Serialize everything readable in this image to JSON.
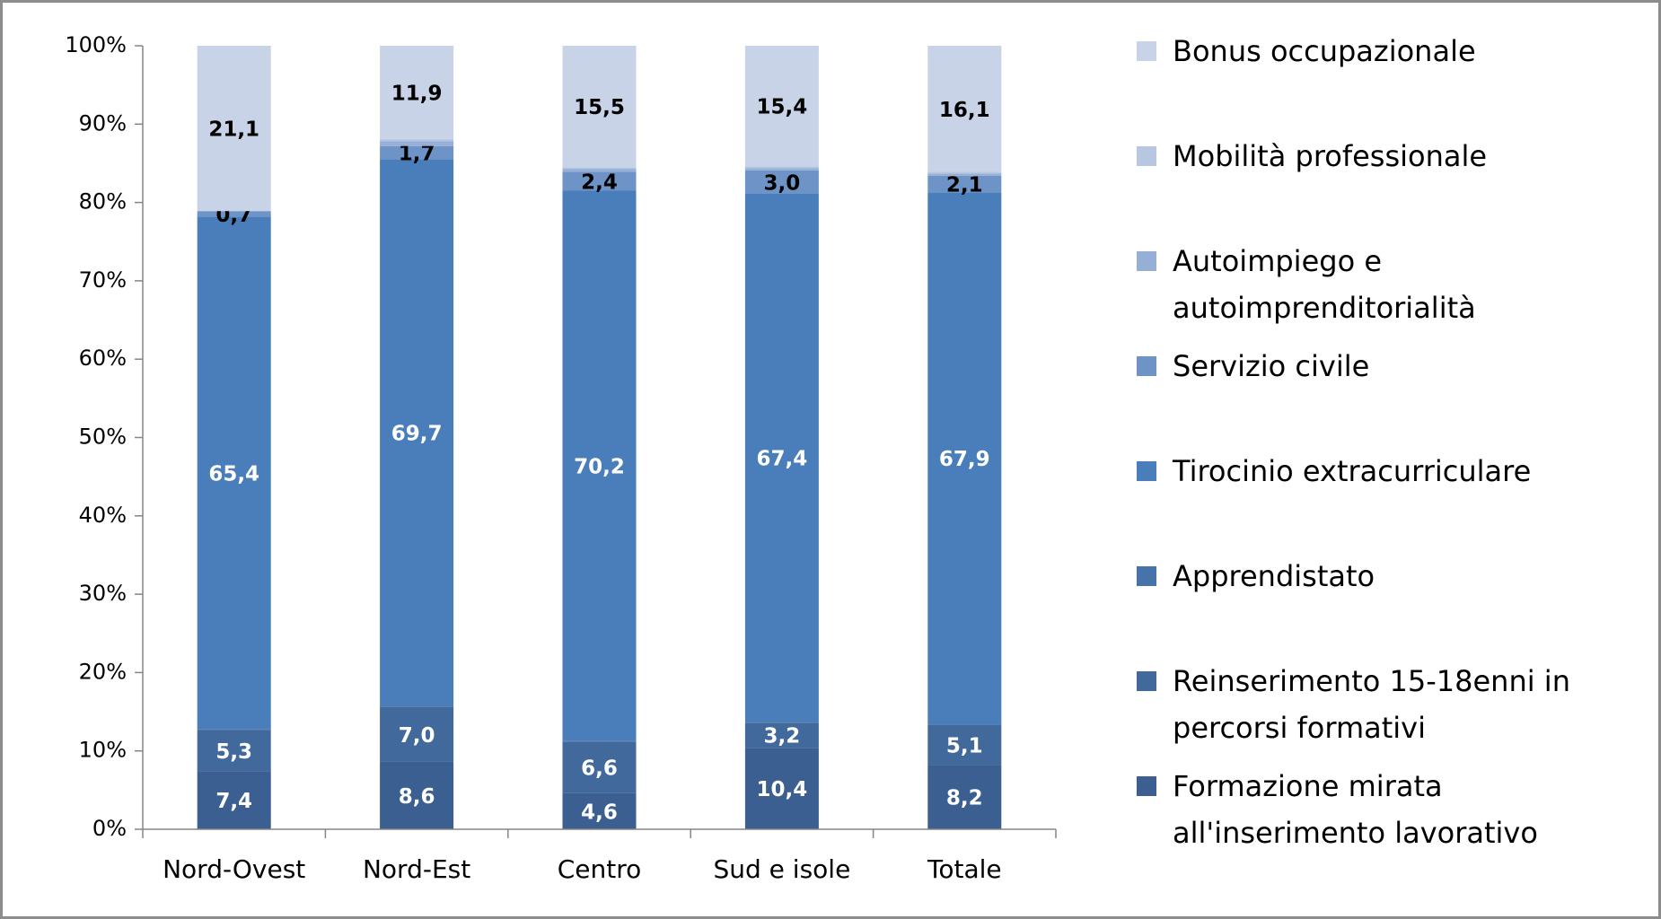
{
  "chart_data": {
    "type": "stacked_bar",
    "categories": [
      "Nord-Ovest",
      "Nord-Est",
      "Centro",
      "Sud e isole",
      "Totale"
    ],
    "series": [
      {
        "name": "Formazione mirata all'inserimento lavorativo",
        "color": "#3b5f90",
        "values": [
          7.4,
          8.6,
          4.6,
          10.4,
          8.2
        ],
        "value_labels": [
          "7,4",
          "8,6",
          "4,6",
          "10,4",
          "8,2"
        ]
      },
      {
        "name": "Reinserimento 15-18enni in percorsi formativi",
        "color": "#41699c",
        "values": [
          5.3,
          7.0,
          6.6,
          3.2,
          5.1
        ],
        "value_labels": [
          "5,3",
          "7,0",
          "6,6",
          "3,2",
          "5,1"
        ]
      },
      {
        "name": "Apprendistato",
        "color": "#4673a9",
        "values": [
          0.1,
          0.2,
          0.1,
          0.1,
          0.1
        ],
        "value_labels": [
          null,
          null,
          null,
          null,
          null
        ]
      },
      {
        "name": "Tirocinio extracurriculare",
        "color": "#4a7ebb",
        "values": [
          65.4,
          69.7,
          70.2,
          67.4,
          67.9
        ],
        "value_labels": [
          "65,4",
          "69,7",
          "70,2",
          "67,4",
          "67,9"
        ]
      },
      {
        "name": "Servizio civile",
        "color": "#6d93c7",
        "values": [
          0.7,
          1.7,
          2.4,
          3.0,
          2.1
        ],
        "value_labels": [
          "0,7",
          "1,7",
          "2,4",
          "3,0",
          "2,1"
        ]
      },
      {
        "name": "Autoimpiego e autoimprenditorialità",
        "color": "#95afd6",
        "values": [
          0.0,
          0.6,
          0.4,
          0.3,
          0.3
        ],
        "value_labels": [
          null,
          null,
          null,
          null,
          null
        ]
      },
      {
        "name": "Mobilità professionale",
        "color": "#b7c7e2",
        "values": [
          0.0,
          0.3,
          0.2,
          0.2,
          0.2
        ],
        "value_labels": [
          null,
          null,
          null,
          null,
          null
        ]
      },
      {
        "name": "Bonus occupazionale",
        "color": "#c9d3e7",
        "values": [
          21.1,
          11.9,
          15.5,
          15.4,
          16.1
        ],
        "value_labels": [
          "21,1",
          "11,9",
          "15,5",
          "15,4",
          "16,1"
        ]
      }
    ],
    "ylim": [
      0,
      100
    ],
    "yticks": [
      {
        "value": 0,
        "label": "0%"
      },
      {
        "value": 10,
        "label": "10%"
      },
      {
        "value": 20,
        "label": "20%"
      },
      {
        "value": 30,
        "label": "30%"
      },
      {
        "value": 40,
        "label": "40%"
      },
      {
        "value": 50,
        "label": "50%"
      },
      {
        "value": 60,
        "label": "60%"
      },
      {
        "value": 70,
        "label": "70%"
      },
      {
        "value": 80,
        "label": "80%"
      },
      {
        "value": 90,
        "label": "90%"
      },
      {
        "value": 100,
        "label": "100%"
      }
    ],
    "legend": "right"
  }
}
